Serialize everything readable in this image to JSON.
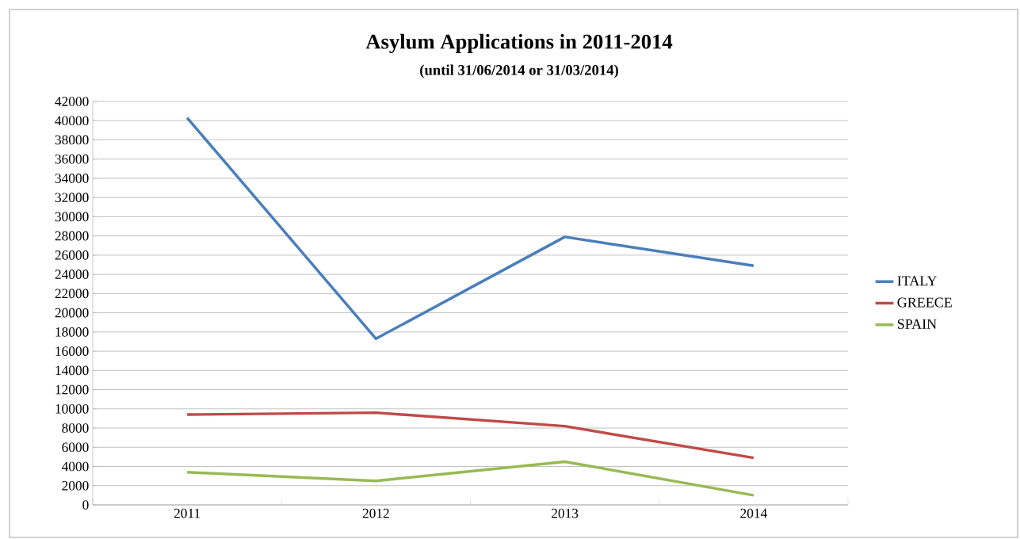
{
  "chart_data": {
    "type": "line",
    "title": "Asylum Applications  in 2011-2014",
    "subtitle": "(until 31/06/2014 or 31/03/2014)",
    "categories": [
      "2011",
      "2012",
      "2013",
      "2014"
    ],
    "series": [
      {
        "name": "ITALY",
        "color": "#4a7ebb",
        "values": [
          40300,
          17300,
          27900,
          24900
        ]
      },
      {
        "name": "GREECE",
        "color": "#be4b48",
        "values": [
          9400,
          9600,
          8200,
          4900
        ]
      },
      {
        "name": "SPAIN",
        "color": "#98b954",
        "values": [
          3400,
          2500,
          4500,
          1000
        ]
      }
    ],
    "ylim": [
      0,
      42000
    ],
    "yticks": [
      0,
      2000,
      4000,
      6000,
      8000,
      10000,
      12000,
      14000,
      16000,
      18000,
      20000,
      22000,
      24000,
      26000,
      28000,
      30000,
      32000,
      34000,
      36000,
      38000,
      40000,
      42000
    ],
    "grid": "y",
    "legend": "right",
    "marker": "none",
    "line_style": "solid"
  }
}
